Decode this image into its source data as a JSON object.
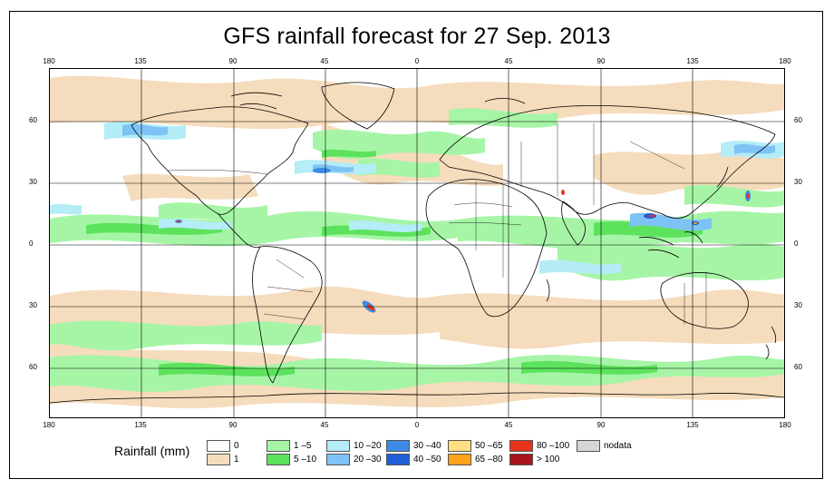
{
  "title": "GFS rainfall forecast for 27 Sep. 2013",
  "axes": {
    "lon_ticks": [
      "180",
      "135",
      "90",
      "45",
      "0",
      "45",
      "90",
      "135",
      "180"
    ],
    "lat_ticks": [
      "60",
      "30",
      "0",
      "30",
      "60"
    ]
  },
  "legend": {
    "title": "Rainfall (mm)",
    "items": [
      {
        "label": "0",
        "color": "#ffffff"
      },
      {
        "label": "1",
        "color": "#f5dcbc"
      },
      {
        "label": "1 –5",
        "color": "#a6f5a6"
      },
      {
        "label": "5 –10",
        "color": "#5ce25c"
      },
      {
        "label": "10 –20",
        "color": "#b4ecf7"
      },
      {
        "label": "20 –30",
        "color": "#7ec3f5"
      },
      {
        "label": "30 –40",
        "color": "#3e8ae6"
      },
      {
        "label": "40 –50",
        "color": "#1f5ed6"
      },
      {
        "label": "50 –65",
        "color": "#ffe082"
      },
      {
        "label": "65 –80",
        "color": "#ffa31a"
      },
      {
        "label": "80 –100",
        "color": "#e8331c"
      },
      {
        "label": "> 100",
        "color": "#a8161c"
      },
      {
        "label": "nodata",
        "color": "#d6d6d6"
      }
    ]
  }
}
